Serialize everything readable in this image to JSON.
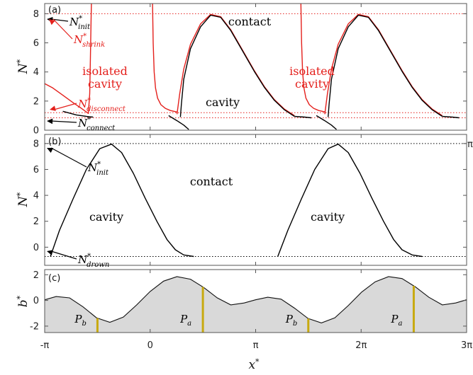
{
  "colors": {
    "black": "#000000",
    "red": "#e4201c",
    "fill": "#d9d9d9",
    "bar": "#c8aa10"
  },
  "x_ticks": [
    "-π",
    "0",
    "π",
    "2π",
    "3π"
  ],
  "xlabel": "x*",
  "chart_data": [
    {
      "type": "line",
      "panel_label": "(a)",
      "ylabel": "N*",
      "xlim": [
        -3.1416,
        9.4248
      ],
      "ylim": [
        0,
        8.7
      ],
      "y_ticks": [
        "0",
        "2",
        "4",
        "6",
        "8"
      ],
      "grid": false,
      "reference_lines": [
        {
          "y": 8.0,
          "color": "red",
          "style": "dotted"
        },
        {
          "y": 1.2,
          "color": "red",
          "style": "dotted"
        },
        {
          "y": 0.85,
          "color": "red",
          "style": "dotted"
        }
      ],
      "region_labels": [
        {
          "text": "contact",
          "color": "black"
        },
        {
          "text": "cavity",
          "color": "black"
        },
        {
          "text": "isolated",
          "color": "red"
        },
        {
          "text": "cavity",
          "color": "red"
        },
        {
          "text": "isolated",
          "color": "red"
        },
        {
          "text": "cavity",
          "color": "red"
        }
      ],
      "annotations": [
        {
          "base": "N*",
          "sub": "init",
          "color": "black"
        },
        {
          "base": "N*",
          "sub": "shrink",
          "color": "red"
        },
        {
          "base": "N*",
          "sub": "disconnect",
          "color": "red"
        },
        {
          "base": "N*",
          "sub": "connect",
          "color": "black"
        }
      ],
      "series": [
        {
          "color": "red",
          "x": [
            -3.14,
            -2.9,
            -2.6,
            -2.3,
            -2.05,
            -1.9,
            -1.84,
            -1.8,
            -1.78,
            -1.76,
            -1.75
          ],
          "y": [
            3.2,
            2.9,
            2.4,
            1.9,
            1.5,
            1.25,
            1.15,
            2.5,
            5.0,
            7.5,
            8.7
          ]
        },
        {
          "color": "black",
          "x": [
            -2.6,
            -2.2,
            -1.9,
            -1.7
          ],
          "y": [
            1.3,
            1.05,
            0.95,
            0.9
          ]
        },
        {
          "color": "red",
          "x": [
            0.07,
            0.09,
            0.12,
            0.16,
            0.22,
            0.32,
            0.45,
            0.6,
            0.8
          ],
          "y": [
            8.7,
            6.0,
            4.0,
            2.9,
            2.2,
            1.75,
            1.5,
            1.35,
            1.25
          ]
        },
        {
          "color": "red",
          "x": [
            0.8,
            0.88,
            1.0,
            1.2,
            1.5,
            1.8,
            2.1,
            2.4,
            2.75,
            3.1,
            3.4,
            3.7,
            4.0,
            4.3
          ],
          "y": [
            1.1,
            2.5,
            4.2,
            5.9,
            7.3,
            7.95,
            7.8,
            6.9,
            5.5,
            4.1,
            3.0,
            2.1,
            1.45,
            1.0
          ]
        },
        {
          "color": "black",
          "x": [
            0.9,
            0.93,
            1.0,
            1.2,
            1.5,
            1.8,
            2.1,
            2.4,
            2.75,
            3.1,
            3.4,
            3.7,
            4.0,
            4.3
          ],
          "y": [
            0.9,
            1.8,
            3.5,
            5.6,
            7.1,
            7.9,
            7.75,
            6.85,
            5.45,
            4.05,
            2.95,
            2.05,
            1.4,
            0.95
          ]
        },
        {
          "color": "black",
          "x": [
            0.55,
            0.8,
            1.0,
            1.15
          ],
          "y": [
            1.0,
            0.65,
            0.35,
            0.05
          ]
        },
        {
          "color": "black",
          "x": [
            4.3,
            4.6,
            4.8
          ],
          "y": [
            0.95,
            0.9,
            0.85
          ]
        },
        {
          "color": "red",
          "x": [
            4.49,
            4.51,
            4.54,
            4.58,
            4.64,
            4.74,
            4.87,
            5.02,
            5.22
          ],
          "y": [
            8.7,
            6.0,
            4.0,
            2.9,
            2.2,
            1.75,
            1.5,
            1.35,
            1.25
          ]
        },
        {
          "color": "red",
          "x": [
            5.2,
            5.28,
            5.4,
            5.6,
            5.9,
            6.2,
            6.5,
            6.8,
            7.15,
            7.5,
            7.8,
            8.1,
            8.4,
            8.7
          ],
          "y": [
            1.1,
            2.5,
            4.2,
            5.9,
            7.3,
            7.95,
            7.8,
            6.9,
            5.5,
            4.1,
            3.0,
            2.1,
            1.45,
            1.0
          ]
        },
        {
          "color": "black",
          "x": [
            5.3,
            5.33,
            5.4,
            5.6,
            5.9,
            6.2,
            6.5,
            6.8,
            7.15,
            7.5,
            7.8,
            8.1,
            8.4,
            8.7
          ],
          "y": [
            0.9,
            1.8,
            3.5,
            5.6,
            7.1,
            7.9,
            7.75,
            6.85,
            5.45,
            4.05,
            2.95,
            2.05,
            1.4,
            0.95
          ]
        },
        {
          "color": "black",
          "x": [
            4.95,
            5.2,
            5.4,
            5.55
          ],
          "y": [
            1.0,
            0.65,
            0.35,
            0.05
          ]
        },
        {
          "color": "black",
          "x": [
            8.7,
            9.0,
            9.2
          ],
          "y": [
            0.95,
            0.9,
            0.85
          ]
        }
      ]
    },
    {
      "type": "line",
      "panel_label": "(b)",
      "ylabel": "N*",
      "xlim": [
        -3.1416,
        9.4248
      ],
      "ylim": [
        -1.4,
        8.7
      ],
      "y_ticks": [
        "0",
        "2",
        "4",
        "6",
        "8"
      ],
      "grid": false,
      "right_edge_label": "π",
      "reference_lines": [
        {
          "y": 8.0,
          "color": "black",
          "style": "dotted"
        },
        {
          "y": -0.72,
          "color": "black",
          "style": "dotted"
        }
      ],
      "region_labels": [
        {
          "text": "contact",
          "color": "black"
        },
        {
          "text": "cavity",
          "color": "black"
        },
        {
          "text": "cavity",
          "color": "black"
        }
      ],
      "annotations": [
        {
          "base": "N*",
          "sub": "init",
          "color": "black"
        },
        {
          "base": "N*",
          "sub": "drown",
          "color": "black"
        }
      ],
      "series": [
        {
          "color": "black",
          "x": [
            -2.97,
            -2.7,
            -2.3,
            -1.9,
            -1.5,
            -1.15,
            -0.85,
            -0.5,
            -0.15,
            0.2,
            0.5,
            0.75,
            1.0,
            1.3
          ],
          "y": [
            -0.72,
            1.3,
            3.7,
            6.0,
            7.6,
            7.95,
            7.3,
            5.7,
            3.8,
            2.0,
            0.6,
            -0.2,
            -0.6,
            -0.72
          ]
        },
        {
          "color": "black",
          "x": [
            3.8,
            4.1,
            4.5,
            4.9,
            5.3,
            5.6,
            5.9,
            6.25,
            6.6,
            6.95,
            7.25,
            7.5,
            7.8,
            8.1
          ],
          "y": [
            -0.72,
            1.3,
            3.7,
            6.0,
            7.6,
            7.95,
            7.3,
            5.7,
            3.8,
            2.0,
            0.6,
            -0.2,
            -0.6,
            -0.72
          ]
        }
      ]
    },
    {
      "type": "area",
      "panel_label": "(c)",
      "ylabel": "b*",
      "xlim": [
        -3.1416,
        9.4248
      ],
      "ylim": [
        -2.5,
        2.4
      ],
      "y_ticks": [
        "-2",
        "0",
        "2"
      ],
      "grid": false,
      "series": [
        {
          "x": [
            -3.14,
            -2.8,
            -2.4,
            -2.0,
            -1.6,
            -1.2,
            -0.8,
            -0.4,
            0.0,
            0.4,
            0.8,
            1.2,
            1.6,
            2.0,
            2.4,
            2.8,
            3.14,
            3.5,
            3.9,
            4.3,
            4.7,
            5.1,
            5.5,
            5.9,
            6.3,
            6.7,
            7.1,
            7.5,
            7.9,
            8.3,
            8.7,
            9.1,
            9.42
          ],
          "y": [
            0.05,
            0.3,
            0.2,
            -0.5,
            -1.35,
            -1.7,
            -1.3,
            -0.35,
            0.7,
            1.5,
            1.85,
            1.65,
            1.0,
            0.2,
            -0.35,
            -0.2,
            0.05,
            0.25,
            0.1,
            -0.6,
            -1.4,
            -1.75,
            -1.35,
            -0.4,
            0.65,
            1.45,
            1.85,
            1.7,
            1.05,
            0.25,
            -0.35,
            -0.2,
            0.05
          ]
        }
      ],
      "markers": [
        {
          "label_base": "P",
          "label_sub": "b",
          "x": -1.57
        },
        {
          "label_base": "P",
          "label_sub": "a",
          "x": 1.57
        },
        {
          "label_base": "P",
          "label_sub": "b",
          "x": 4.71
        },
        {
          "label_base": "P",
          "label_sub": "a",
          "x": 7.85
        }
      ]
    }
  ]
}
